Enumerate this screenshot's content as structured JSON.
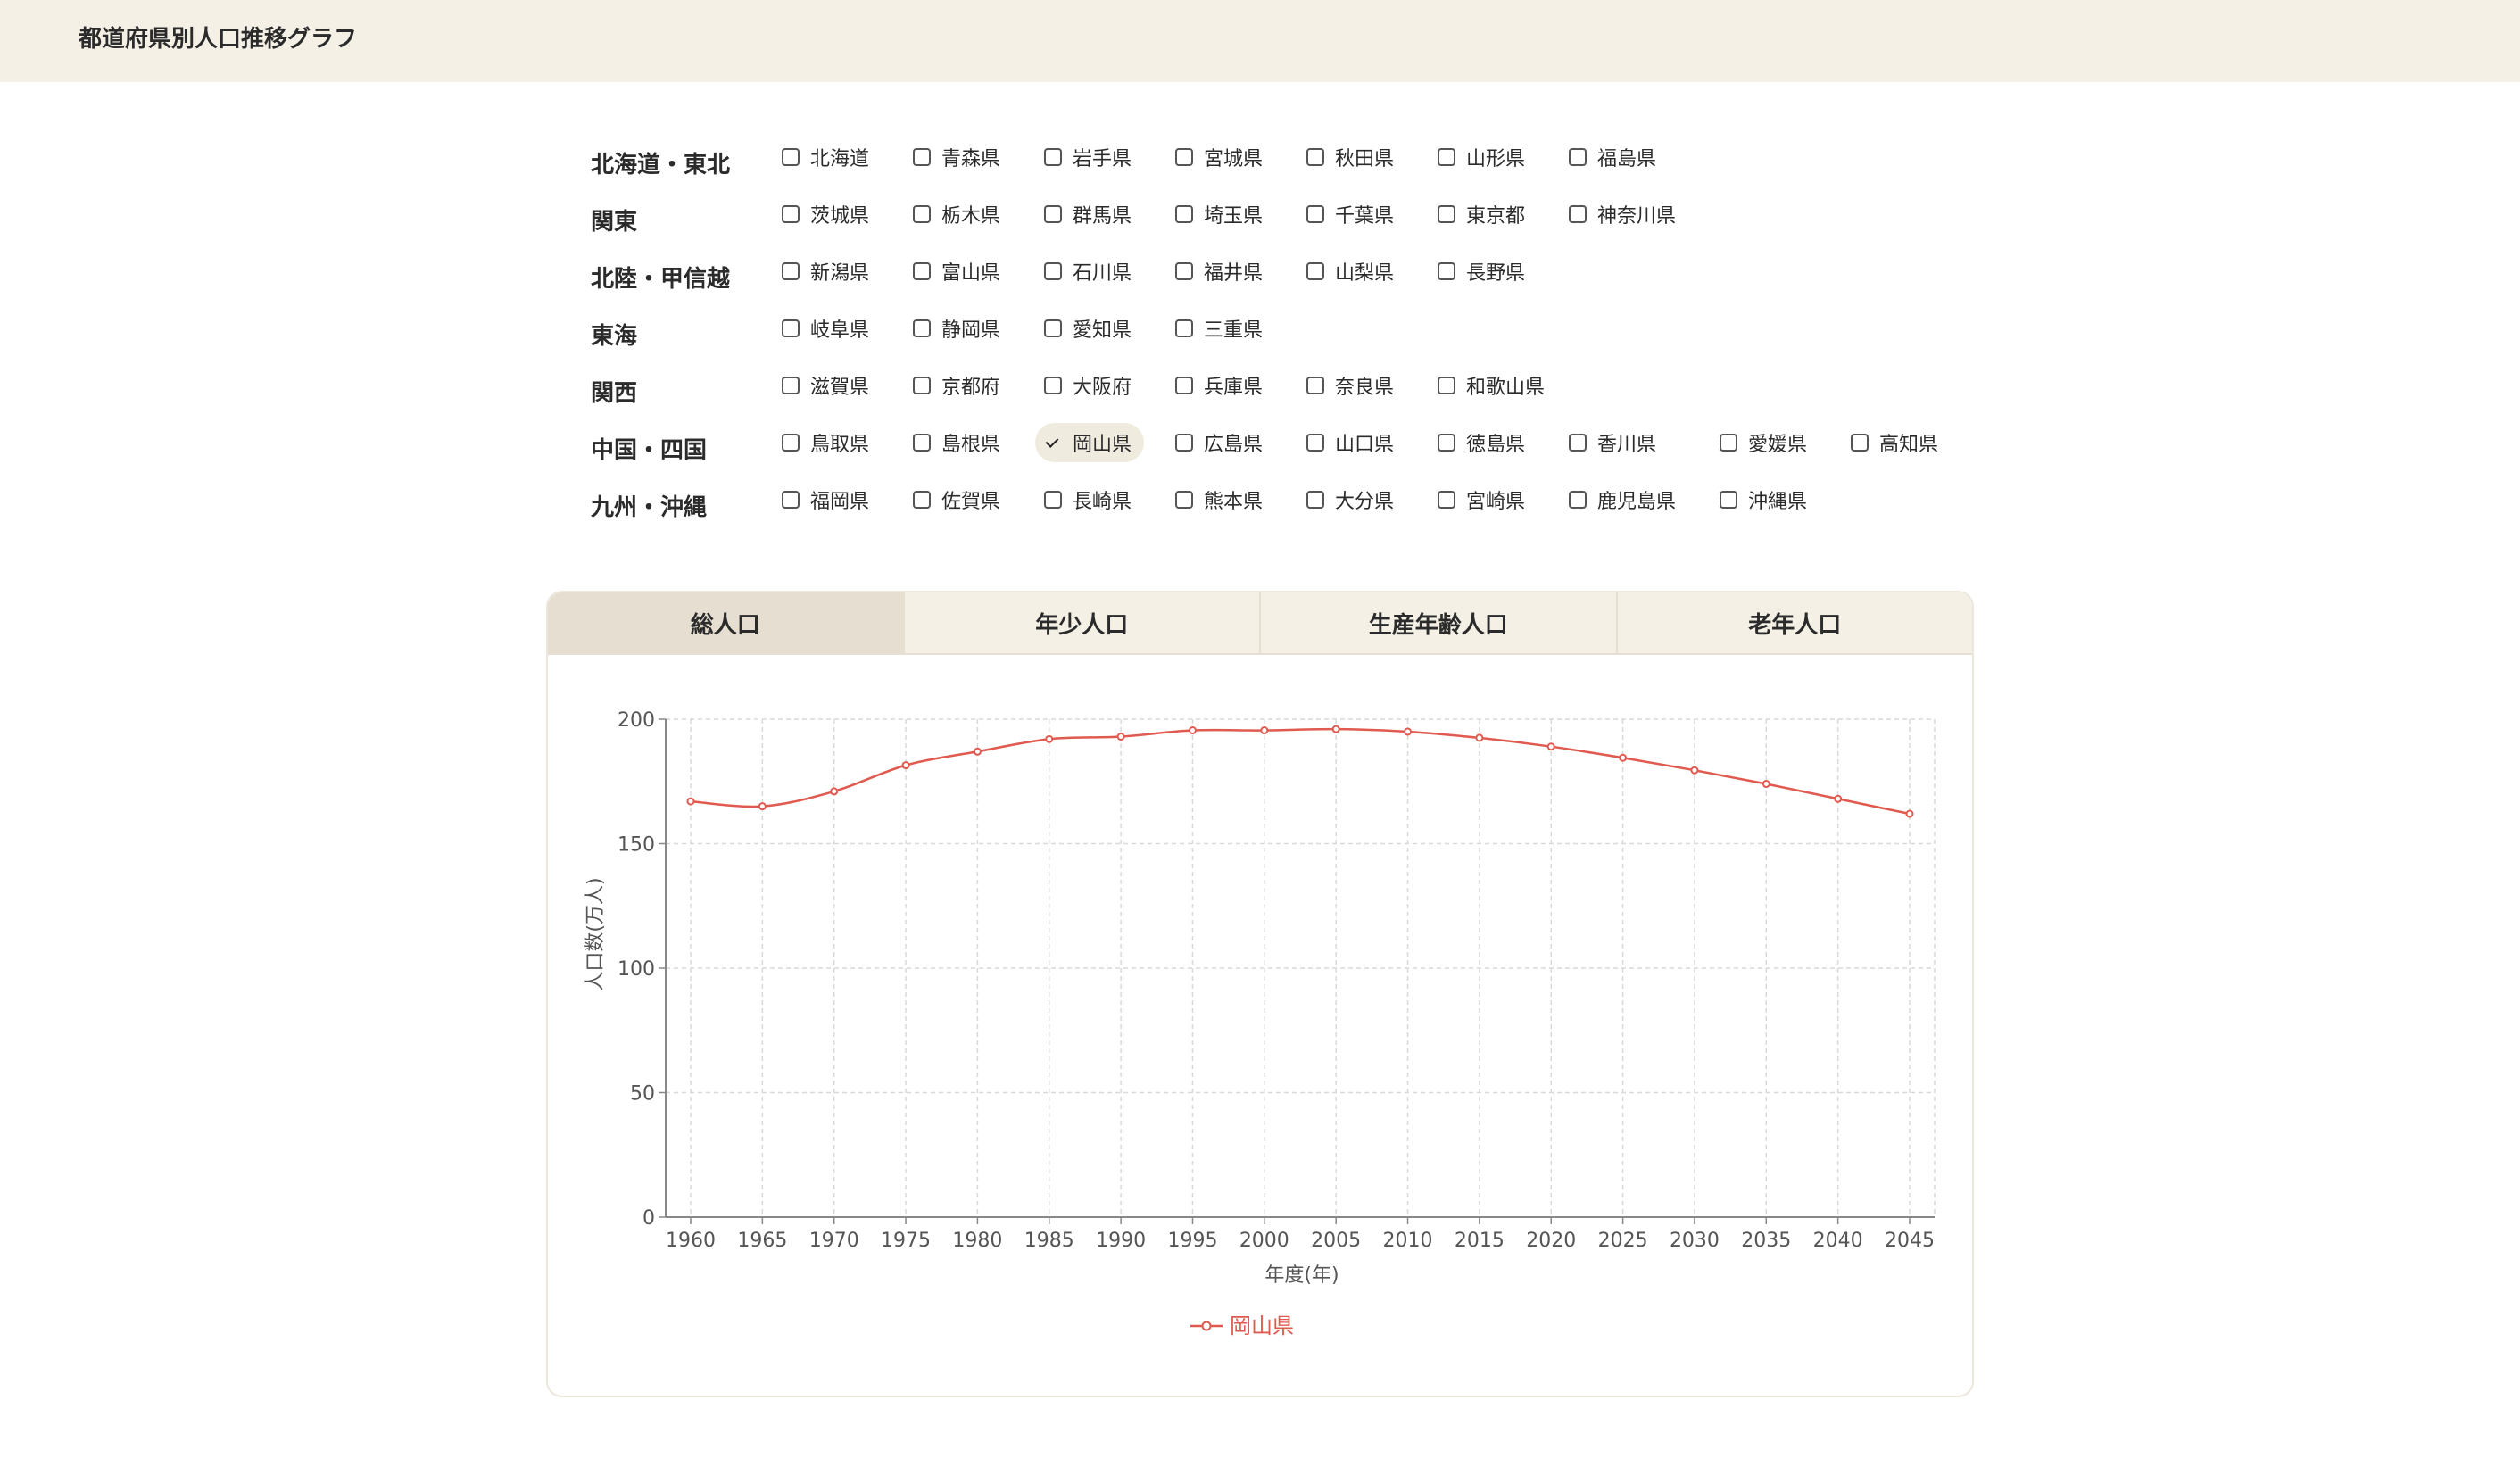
{
  "header": {
    "title": "都道府県別人口推移グラフ"
  },
  "regions": [
    {
      "name": "北海道・東北",
      "prefectures": [
        {
          "name": "北海道",
          "checked": false
        },
        {
          "name": "青森県",
          "checked": false
        },
        {
          "name": "岩手県",
          "checked": false
        },
        {
          "name": "宮城県",
          "checked": false
        },
        {
          "name": "秋田県",
          "checked": false
        },
        {
          "name": "山形県",
          "checked": false
        },
        {
          "name": "福島県",
          "checked": false
        }
      ]
    },
    {
      "name": "関東",
      "prefectures": [
        {
          "name": "茨城県",
          "checked": false
        },
        {
          "name": "栃木県",
          "checked": false
        },
        {
          "name": "群馬県",
          "checked": false
        },
        {
          "name": "埼玉県",
          "checked": false
        },
        {
          "name": "千葉県",
          "checked": false
        },
        {
          "name": "東京都",
          "checked": false
        },
        {
          "name": "神奈川県",
          "checked": false
        }
      ]
    },
    {
      "name": "北陸・甲信越",
      "prefectures": [
        {
          "name": "新潟県",
          "checked": false
        },
        {
          "name": "富山県",
          "checked": false
        },
        {
          "name": "石川県",
          "checked": false
        },
        {
          "name": "福井県",
          "checked": false
        },
        {
          "name": "山梨県",
          "checked": false
        },
        {
          "name": "長野県",
          "checked": false
        }
      ]
    },
    {
      "name": "東海",
      "prefectures": [
        {
          "name": "岐阜県",
          "checked": false
        },
        {
          "name": "静岡県",
          "checked": false
        },
        {
          "name": "愛知県",
          "checked": false
        },
        {
          "name": "三重県",
          "checked": false
        }
      ]
    },
    {
      "name": "関西",
      "prefectures": [
        {
          "name": "滋賀県",
          "checked": false
        },
        {
          "name": "京都府",
          "checked": false
        },
        {
          "name": "大阪府",
          "checked": false
        },
        {
          "name": "兵庫県",
          "checked": false
        },
        {
          "name": "奈良県",
          "checked": false
        },
        {
          "name": "和歌山県",
          "checked": false
        }
      ]
    },
    {
      "name": "中国・四国",
      "prefectures": [
        {
          "name": "鳥取県",
          "checked": false
        },
        {
          "name": "島根県",
          "checked": false
        },
        {
          "name": "岡山県",
          "checked": true
        },
        {
          "name": "広島県",
          "checked": false
        },
        {
          "name": "山口県",
          "checked": false
        },
        {
          "name": "徳島県",
          "checked": false
        },
        {
          "name": "香川県",
          "checked": false
        },
        {
          "name": "愛媛県",
          "checked": false
        },
        {
          "name": "高知県",
          "checked": false
        }
      ]
    },
    {
      "name": "九州・沖縄",
      "prefectures": [
        {
          "name": "福岡県",
          "checked": false
        },
        {
          "name": "佐賀県",
          "checked": false
        },
        {
          "name": "長崎県",
          "checked": false
        },
        {
          "name": "熊本県",
          "checked": false
        },
        {
          "name": "大分県",
          "checked": false
        },
        {
          "name": "宮崎県",
          "checked": false
        },
        {
          "name": "鹿児島県",
          "checked": false
        },
        {
          "name": "沖縄県",
          "checked": false
        }
      ]
    }
  ],
  "tabs": [
    {
      "label": "総人口",
      "active": true
    },
    {
      "label": "年少人口",
      "active": false
    },
    {
      "label": "生産年齢人口",
      "active": false
    },
    {
      "label": "老年人口",
      "active": false
    }
  ],
  "chart_data": {
    "type": "line",
    "x": [
      1960,
      1965,
      1970,
      1975,
      1980,
      1985,
      1990,
      1995,
      2000,
      2005,
      2010,
      2015,
      2020,
      2025,
      2030,
      2035,
      2040,
      2045
    ],
    "series": [
      {
        "name": "岡山県",
        "color": "#e05a4f",
        "values": [
          167,
          165,
          171,
          181.5,
          187,
          192,
          193,
          195.5,
          195.5,
          196,
          195,
          192.5,
          189,
          184.5,
          179.5,
          174,
          168,
          162
        ]
      }
    ],
    "xlabel": "年度(年)",
    "ylabel": "人口数(万人)",
    "ylim": [
      0,
      200
    ],
    "yticks": [
      0,
      50,
      100,
      150,
      200
    ],
    "grid": true,
    "legend": "bottom-center"
  }
}
